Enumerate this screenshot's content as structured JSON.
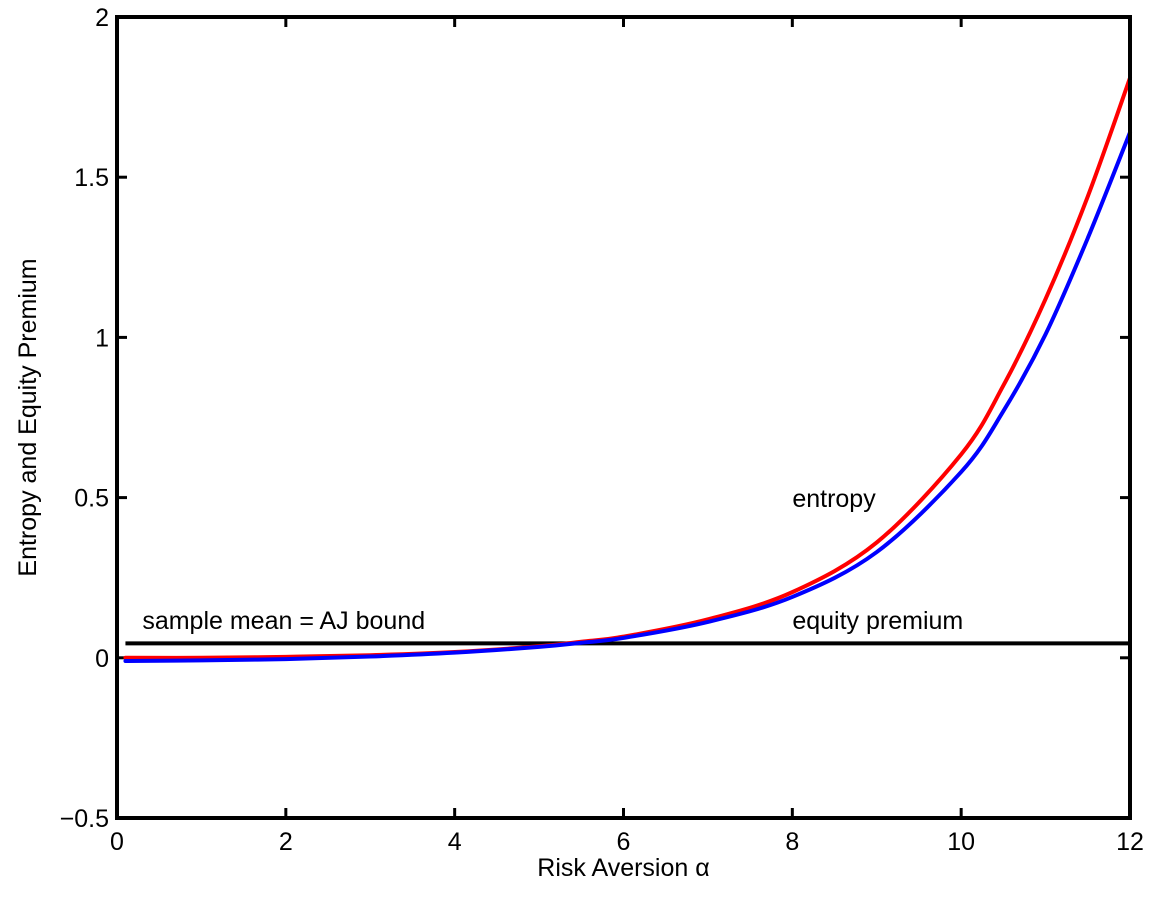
{
  "chart_data": {
    "type": "line",
    "title": "",
    "xlabel": "Risk Aversion α",
    "ylabel": "Entropy and Equity Premium",
    "xlim": [
      0,
      12
    ],
    "ylim": [
      -0.5,
      2
    ],
    "grid": false,
    "x_ticks": [
      0,
      2,
      4,
      6,
      8,
      10,
      12
    ],
    "x_tick_labels": [
      "0",
      "2",
      "4",
      "6",
      "8",
      "10",
      "12"
    ],
    "y_ticks": [
      -0.5,
      0,
      0.5,
      1,
      1.5,
      2
    ],
    "y_tick_labels": [
      "−0.5",
      "0",
      "0.5",
      "1",
      "1.5",
      "2"
    ],
    "x": [
      0.1,
      1,
      2,
      3,
      4,
      5,
      5.5,
      6,
      7,
      8,
      9,
      10,
      10.5,
      11,
      11.5,
      12
    ],
    "series": [
      {
        "color": "#ff0000",
        "values": [
          0.0,
          0.0,
          0.003,
          0.008,
          0.018,
          0.036,
          0.05,
          0.066,
          0.12,
          0.205,
          0.36,
          0.635,
          0.85,
          1.12,
          1.44,
          1.81
        ]
      },
      {
        "color": "#0000ff",
        "values": [
          -0.01,
          -0.008,
          -0.004,
          0.004,
          0.016,
          0.034,
          0.047,
          0.062,
          0.112,
          0.19,
          0.33,
          0.58,
          0.77,
          1.01,
          1.31,
          1.64
        ]
      }
    ],
    "hlines": [
      {
        "y": 0.045,
        "color": "#000000"
      }
    ],
    "annotations": [
      {
        "text": "sample mean = AJ bound",
        "x": 0.3,
        "y": 0.09
      },
      {
        "text": "entropy",
        "x": 8.0,
        "y": 0.47
      },
      {
        "text": "equity premium",
        "x": 8.0,
        "y": 0.09
      }
    ]
  }
}
